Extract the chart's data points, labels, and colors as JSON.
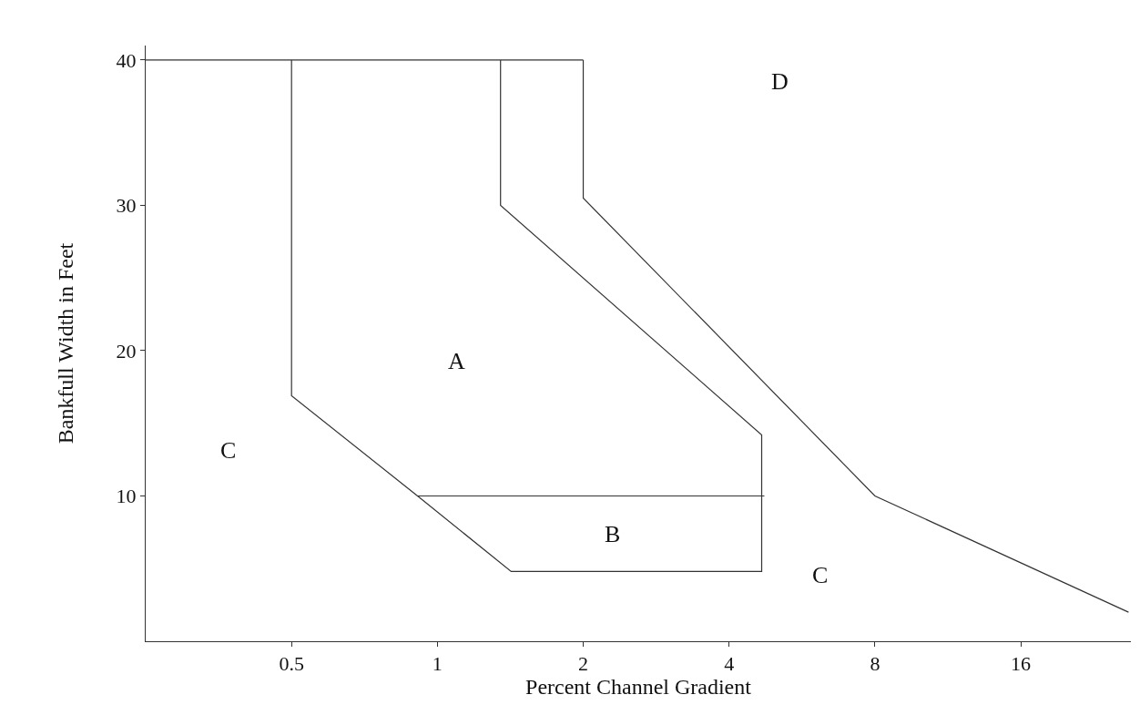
{
  "chart_data": {
    "type": "line",
    "xlabel": "Percent Channel Gradient",
    "ylabel": "Bankfull Width in Feet",
    "log": "x",
    "xlim": [
      0.25,
      27
    ],
    "ylim": [
      0,
      41
    ],
    "xticks": [
      0.5,
      1,
      2,
      4,
      8,
      16
    ],
    "yticks": [
      10,
      20,
      30,
      40
    ],
    "marker": "none",
    "line_style": "solid",
    "series": [
      {
        "color": "#333333",
        "x": [
          0.25,
          2
        ],
        "values": [
          40,
          40
        ]
      },
      {
        "color": "#333333",
        "x": [
          0.5,
          0.5,
          0.91,
          1.42,
          4.67,
          4.67,
          1.35,
          1.35
        ],
        "values": [
          40,
          16.9,
          10,
          4.8,
          4.8,
          14.2,
          30,
          40
        ]
      },
      {
        "color": "#333333",
        "x": [
          2,
          2,
          8,
          26.7
        ],
        "values": [
          40,
          30.5,
          10,
          2
        ]
      },
      {
        "color": "#333333",
        "x": [
          0.91,
          4.73
        ],
        "values": [
          10,
          10
        ]
      }
    ],
    "annotations": [
      "A",
      "B",
      "C",
      "C",
      "D"
    ]
  }
}
